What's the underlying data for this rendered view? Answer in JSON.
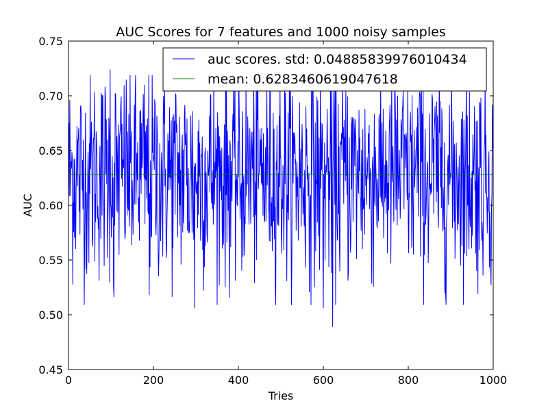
{
  "chart_data": {
    "type": "line",
    "title": "AUC Scores for 7 features and 1000 noisy samples",
    "xlabel": "Tries",
    "ylabel": "AUC",
    "xlim": [
      0,
      1000
    ],
    "ylim": [
      0.45,
      0.75
    ],
    "x_ticks": [
      "0",
      "200",
      "400",
      "600",
      "800",
      "1000"
    ],
    "x_tick_values": [
      0,
      200,
      400,
      600,
      800,
      1000
    ],
    "y_ticks": [
      "0.45",
      "0.50",
      "0.55",
      "0.60",
      "0.65",
      "0.70",
      "0.75"
    ],
    "y_tick_values": [
      0.45,
      0.5,
      0.55,
      0.6,
      0.65,
      0.7,
      0.75
    ],
    "grid": false,
    "legend_position": "top-right",
    "series": [
      {
        "name": "auc scores. std: 0.04885839976010434",
        "color": "#0000ff",
        "kind": "noisy-line",
        "n_points": 1000,
        "mean": 0.6283460619047618,
        "std": 0.04885839976010434,
        "min": 0.489,
        "max": 0.724,
        "notable_points": [
          {
            "x": 98,
            "y": 0.724
          },
          {
            "x": 107,
            "y": 0.516
          },
          {
            "x": 190,
            "y": 0.518
          },
          {
            "x": 297,
            "y": 0.506
          },
          {
            "x": 600,
            "y": 0.506
          },
          {
            "x": 622,
            "y": 0.489
          }
        ]
      },
      {
        "name": "mean: 0.6283460619047618",
        "color": "#008000",
        "kind": "hline",
        "value": 0.6283460619047618
      }
    ]
  }
}
